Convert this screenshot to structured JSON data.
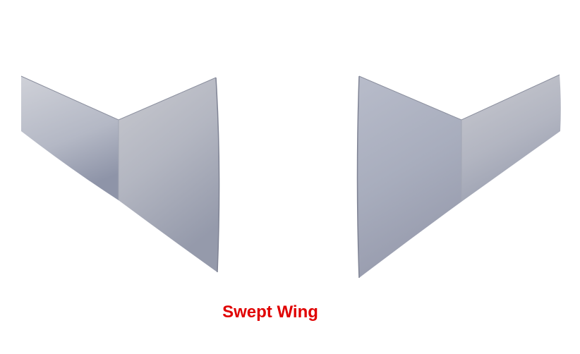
{
  "caption": {
    "text": "Swept Wing",
    "color": "#e00000"
  },
  "wings": {
    "colors": {
      "surface_light": "#c6c8d0",
      "surface_mid": "#a9adbb",
      "surface_dark": "#8f94a6",
      "edge": "#7d8192"
    }
  }
}
